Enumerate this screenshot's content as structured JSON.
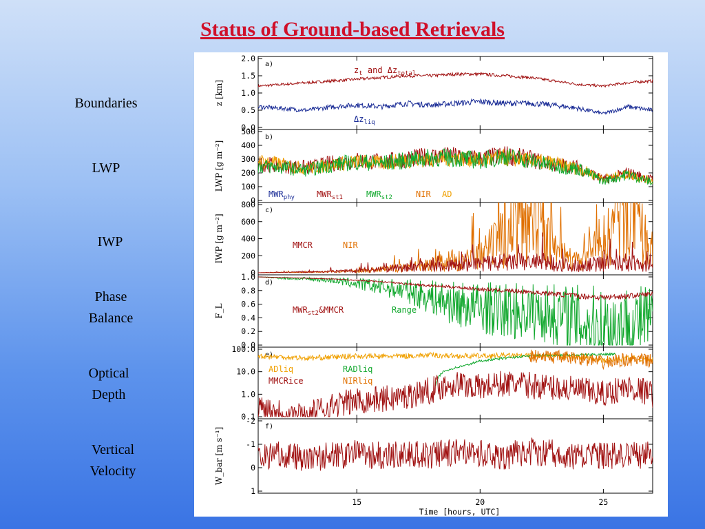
{
  "slide": {
    "title": "Status of Ground-based Retrievals",
    "labels": [
      "Boundaries",
      "LWP",
      "IWP",
      "Phase\nBalance",
      "Optical\nDepth",
      "Vertical\nVelocity"
    ]
  },
  "colors": {
    "title": "#d0102a",
    "dark_red": "#a01010",
    "navy": "#1a2c96",
    "green": "#12a82e",
    "orange": "#f0a000",
    "nir_orange": "#e07000"
  },
  "chart_data": {
    "type": "line",
    "x_range": [
      11,
      27
    ],
    "x_ticks": [
      15,
      20,
      25
    ],
    "x_tick_labels": [
      "15",
      "20",
      "25"
    ],
    "xlabel": "Time [hours, UTC]",
    "panels": [
      {
        "letter": "a)",
        "ylabel": "z [km]",
        "ylim": [
          0,
          2.0
        ],
        "yticks": [
          "2.0",
          "1.5",
          "1.0",
          "0.5",
          "0.0"
        ],
        "annotations": [
          {
            "text": "z",
            "sub": "t",
            "text2": " and Δz",
            "sub2": "total",
            "color": "#a01010"
          },
          {
            "text": "Δz",
            "sub": "liq",
            "color": "#1a2c96"
          }
        ],
        "series": [
          {
            "name": "z_t",
            "color": "#a01010",
            "x": [
              11,
              12,
              13,
              14,
              15,
              16,
              17,
              18,
              19,
              20,
              21,
              22,
              23,
              24,
              25,
              26,
              27
            ],
            "y": [
              1.2,
              1.25,
              1.3,
              1.35,
              1.4,
              1.45,
              1.5,
              1.5,
              1.55,
              1.55,
              1.5,
              1.45,
              1.35,
              1.25,
              1.2,
              1.3,
              1.35
            ]
          },
          {
            "name": "Δz_liq",
            "color": "#1a2c96",
            "x": [
              11,
              12,
              13,
              14,
              15,
              16,
              17,
              18,
              19,
              20,
              21,
              22,
              23,
              24,
              25,
              26,
              27
            ],
            "y": [
              0.6,
              0.55,
              0.5,
              0.6,
              0.65,
              0.6,
              0.7,
              0.65,
              0.7,
              0.75,
              0.7,
              0.7,
              0.65,
              0.55,
              0.4,
              0.6,
              0.5
            ]
          }
        ]
      },
      {
        "letter": "b)",
        "ylabel": "LWP [g m⁻²]",
        "ylim": [
          0,
          500
        ],
        "yticks": [
          "500",
          "400",
          "300",
          "200",
          "100",
          "0"
        ],
        "legend": [
          {
            "text": "MWR",
            "sub": "phy",
            "color": "#1a2c96"
          },
          {
            "text": "MWR",
            "sub": "st1",
            "color": "#a01010"
          },
          {
            "text": "MWR",
            "sub": "st2",
            "color": "#12a82e"
          },
          {
            "text": "NIR",
            "sub": "",
            "color": "#e07000"
          },
          {
            "text": "AD",
            "sub": "",
            "color": "#f0a000"
          }
        ],
        "series": [
          {
            "name": "MWR_st1",
            "color": "#a01010",
            "x": [
              11,
              12,
              13,
              14,
              15,
              16,
              17,
              18,
              19,
              20,
              21,
              22,
              23,
              24,
              25,
              26,
              27
            ],
            "y": [
              270,
              250,
              240,
              270,
              290,
              280,
              300,
              320,
              320,
              300,
              330,
              300,
              260,
              240,
              150,
              200,
              150
            ]
          },
          {
            "name": "AD",
            "color": "#f0a000",
            "x": [
              11,
              12,
              13,
              14,
              15,
              16,
              17,
              18,
              19,
              20,
              21,
              22,
              23,
              24,
              25,
              26,
              27
            ],
            "y": [
              290,
              260,
              230,
              260,
              280,
              270,
              290,
              300,
              310,
              290,
              310,
              290,
              270,
              230,
              160,
              190,
              140
            ]
          },
          {
            "name": "MWR_st2",
            "color": "#12a82e",
            "x": [
              11,
              12,
              13,
              14,
              15,
              16,
              17,
              18,
              19,
              20,
              21,
              22,
              23,
              24,
              25,
              26,
              27
            ],
            "y": [
              250,
              240,
              220,
              260,
              280,
              270,
              290,
              310,
              310,
              290,
              320,
              290,
              250,
              230,
              140,
              190,
              130
            ]
          }
        ]
      },
      {
        "letter": "c)",
        "ylabel": "IWP [g m⁻²]",
        "ylim": [
          0,
          800
        ],
        "yticks": [
          "800",
          "600",
          "400",
          "200",
          "0"
        ],
        "legend": [
          {
            "text": "MMCR",
            "sub": "",
            "color": "#a01010"
          },
          {
            "text": "NIR",
            "sub": "",
            "color": "#e07000"
          }
        ],
        "series": [
          {
            "name": "NIR",
            "color": "#e07000",
            "x": [
              11,
              12,
              13,
              14,
              15,
              16,
              17,
              18,
              19,
              20,
              21,
              22,
              23,
              24,
              25,
              26,
              27
            ],
            "y": [
              0,
              5,
              5,
              10,
              20,
              40,
              60,
              100,
              150,
              180,
              420,
              700,
              250,
              120,
              350,
              750,
              200
            ]
          },
          {
            "name": "MMCR",
            "color": "#a01010",
            "x": [
              11,
              12,
              13,
              14,
              15,
              16,
              17,
              18,
              19,
              20,
              21,
              22,
              23,
              24,
              25,
              26,
              27
            ],
            "y": [
              0,
              5,
              10,
              15,
              30,
              40,
              60,
              80,
              90,
              100,
              120,
              130,
              100,
              80,
              110,
              120,
              60
            ]
          }
        ]
      },
      {
        "letter": "d)",
        "ylabel": "F_L",
        "ylim": [
          0,
          1.0
        ],
        "yticks": [
          "1.0",
          "0.8",
          "0.6",
          "0.4",
          "0.2",
          "0.0"
        ],
        "legend": [
          {
            "text": "MWR",
            "sub": "st2",
            "text2": "&MMCR",
            "color": "#a01010"
          },
          {
            "text": "Range",
            "sub": "",
            "color": "#12a82e"
          }
        ],
        "series": [
          {
            "name": "Range",
            "color": "#12a82e",
            "x": [
              11,
              12,
              13,
              14,
              15,
              16,
              17,
              18,
              19,
              20,
              21,
              22,
              23,
              24,
              25,
              26,
              27
            ],
            "y": [
              1.0,
              0.98,
              0.97,
              0.95,
              0.9,
              0.85,
              0.8,
              0.7,
              0.6,
              0.55,
              0.5,
              0.5,
              0.45,
              0.35,
              0.25,
              0.3,
              0.4
            ]
          },
          {
            "name": "MWR_st2&MMCR",
            "color": "#a01010",
            "x": [
              11,
              12,
              13,
              14,
              15,
              16,
              17,
              18,
              19,
              20,
              21,
              22,
              23,
              24,
              25,
              26,
              27
            ],
            "y": [
              1.0,
              0.99,
              0.98,
              0.97,
              0.95,
              0.93,
              0.9,
              0.87,
              0.85,
              0.82,
              0.8,
              0.78,
              0.75,
              0.72,
              0.7,
              0.72,
              0.75
            ]
          }
        ]
      },
      {
        "letter": "e)",
        "log": true,
        "ylim": [
          0.1,
          100
        ],
        "yticks": [
          "100.0",
          "10.0",
          "1.0",
          "0.1"
        ],
        "legend": [
          {
            "text": "ADliq",
            "sub": "",
            "color": "#f0a000"
          },
          {
            "text": "RADliq",
            "sub": "",
            "color": "#12a82e"
          },
          {
            "text": "MMCRice",
            "sub": "",
            "color": "#a01010"
          },
          {
            "text": "NIRliq",
            "sub": "",
            "color": "#e07000"
          }
        ],
        "series": [
          {
            "name": "ADliq",
            "color": "#f0a000",
            "x": [
              11,
              12,
              13,
              14,
              15,
              16,
              17,
              18,
              19,
              20,
              21,
              22,
              23,
              24,
              25,
              26,
              27
            ],
            "y": [
              50,
              45,
              40,
              45,
              50,
              48,
              50,
              55,
              50,
              50,
              52,
              50,
              48,
              45,
              30,
              40,
              35
            ]
          },
          {
            "name": "RADliq",
            "color": "#12a82e",
            "x": [
              18.2,
              18.5,
              19,
              19.5,
              20,
              21,
              22,
              23,
              24,
              25,
              25.5
            ],
            "y": [
              2.5,
              10,
              15,
              20,
              30,
              40,
              50,
              55,
              55,
              60,
              60
            ]
          },
          {
            "name": "MMCRice",
            "color": "#a01010",
            "x": [
              11,
              12,
              13,
              14,
              15,
              16,
              17,
              18,
              19,
              20,
              21,
              22,
              23,
              24,
              25,
              26,
              27
            ],
            "y": [
              0.3,
              0.15,
              0.1,
              0.3,
              0.5,
              0.6,
              0.8,
              1.5,
              3,
              2,
              3,
              2.5,
              2,
              1.5,
              1,
              2,
              1
            ]
          },
          {
            "name": "NIRliq",
            "color": "#e07000",
            "x": [
              22,
              23,
              24,
              25,
              26,
              27
            ],
            "y": [
              50,
              45,
              40,
              25,
              35,
              30
            ]
          }
        ]
      },
      {
        "letter": "f)",
        "ylabel": "W_bar [m s⁻¹]",
        "ylim": [
          1,
          -2
        ],
        "yticks": [
          "-2",
          "-1",
          "0",
          "1"
        ],
        "series": [
          {
            "name": "W_bar",
            "color": "#a01010",
            "x": [
              11,
              12,
              13,
              14,
              15,
              16,
              17,
              18,
              19,
              20,
              21,
              22,
              23,
              24,
              25,
              26,
              27
            ],
            "y": [
              -0.5,
              -0.6,
              -0.4,
              -0.5,
              -0.6,
              -0.5,
              -0.6,
              -0.5,
              -0.7,
              -0.6,
              -0.5,
              -0.7,
              -0.6,
              -0.5,
              -0.5,
              -0.6,
              -0.5
            ]
          }
        ]
      }
    ]
  }
}
